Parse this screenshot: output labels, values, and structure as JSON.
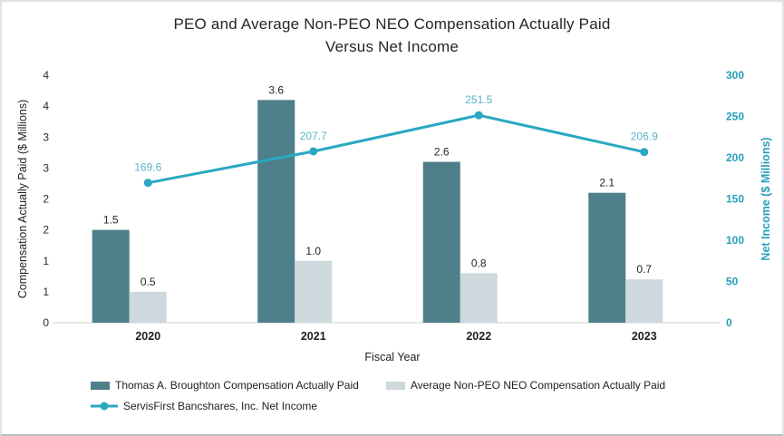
{
  "title": {
    "line1": "PEO and Average Non-PEO NEO Compensation Actually Paid",
    "line2": "Versus Net Income"
  },
  "chart_data": {
    "type": "bar+line",
    "title": "PEO and Average Non-PEO NEO Compensation Actually Paid Versus Net Income",
    "categories": [
      "2020",
      "2021",
      "2022",
      "2023"
    ],
    "xlabel": "Fiscal Year",
    "bar_series": [
      {
        "name": "Thomas A. Broughton Compensation Actually Paid",
        "color": "#4f7f8a",
        "axis": "left",
        "values": [
          1.5,
          3.6,
          2.6,
          2.1
        ],
        "labels": [
          "1.5",
          "3.6",
          "2.6",
          "2.1"
        ]
      },
      {
        "name": "Average Non-PEO NEO Compensation Actually Paid",
        "color": "#cdd9dd",
        "axis": "left",
        "values": [
          0.5,
          1.0,
          0.8,
          0.7
        ],
        "labels": [
          "0.5",
          "1.0",
          "0.8",
          "0.7"
        ]
      }
    ],
    "line_series": [
      {
        "name": "ServisFirst Bancshares, Inc. Net Income",
        "color": "#29a8c1",
        "label_color": "#58b4c9",
        "axis": "right",
        "values": [
          169.6,
          207.7,
          251.5,
          206.9
        ],
        "labels": [
          "169.6",
          "207.7",
          "251.5",
          "206.9"
        ]
      }
    ],
    "left_axis": {
      "label": "Compensation Actually Paid ($ Millions)",
      "min": 0,
      "max": 4,
      "tick_step": 0.5,
      "tick_labels_bottom_to_top": [
        "0",
        "1",
        "1",
        "2",
        "2",
        "3",
        "3",
        "4",
        "4"
      ]
    },
    "right_axis": {
      "label": "Net Income ($ Millions)",
      "min": 0,
      "max": 300,
      "tick_step": 50,
      "color": "#27a0ba",
      "tick_labels_bottom_to_top": [
        "0",
        "50",
        "100",
        "150",
        "200",
        "250",
        "300"
      ]
    },
    "grid": "off",
    "legend_position": "bottom"
  }
}
